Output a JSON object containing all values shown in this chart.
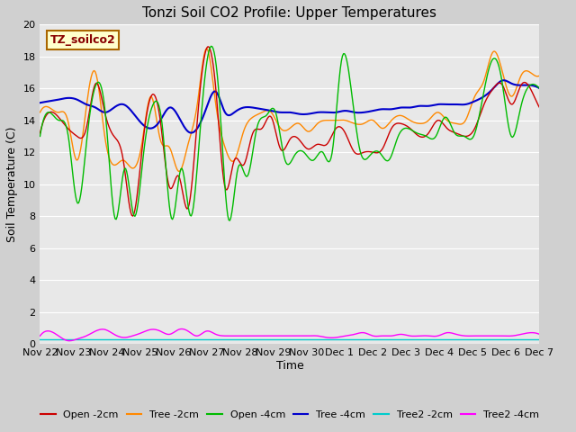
{
  "title": "Tonzi Soil CO2 Profile: Upper Temperatures",
  "xlabel": "Time",
  "ylabel": "Soil Temperature (C)",
  "ylim": [
    0,
    20
  ],
  "yticks": [
    0,
    2,
    4,
    6,
    8,
    10,
    12,
    14,
    16,
    18,
    20
  ],
  "fig_bg": "#d0d0d0",
  "plot_bg": "#e8e8e8",
  "legend_label": "TZ_soilco2",
  "series_colors": {
    "Open -2cm": "#cc0000",
    "Tree -2cm": "#ff8800",
    "Open -4cm": "#00bb00",
    "Tree -4cm": "#0000cc",
    "Tree2 -2cm": "#00cccc",
    "Tree2 -4cm": "#ff00ff"
  },
  "x_tick_labels": [
    "Nov 22",
    "Nov 23",
    "Nov 24",
    "Nov 25",
    "Nov 26",
    "Nov 27",
    "Nov 28",
    "Nov 29",
    "Nov 30",
    "Dec 1",
    "Dec 2",
    "Dec 3",
    "Dec 4",
    "Dec 5",
    "Dec 6",
    "Dec 7"
  ]
}
